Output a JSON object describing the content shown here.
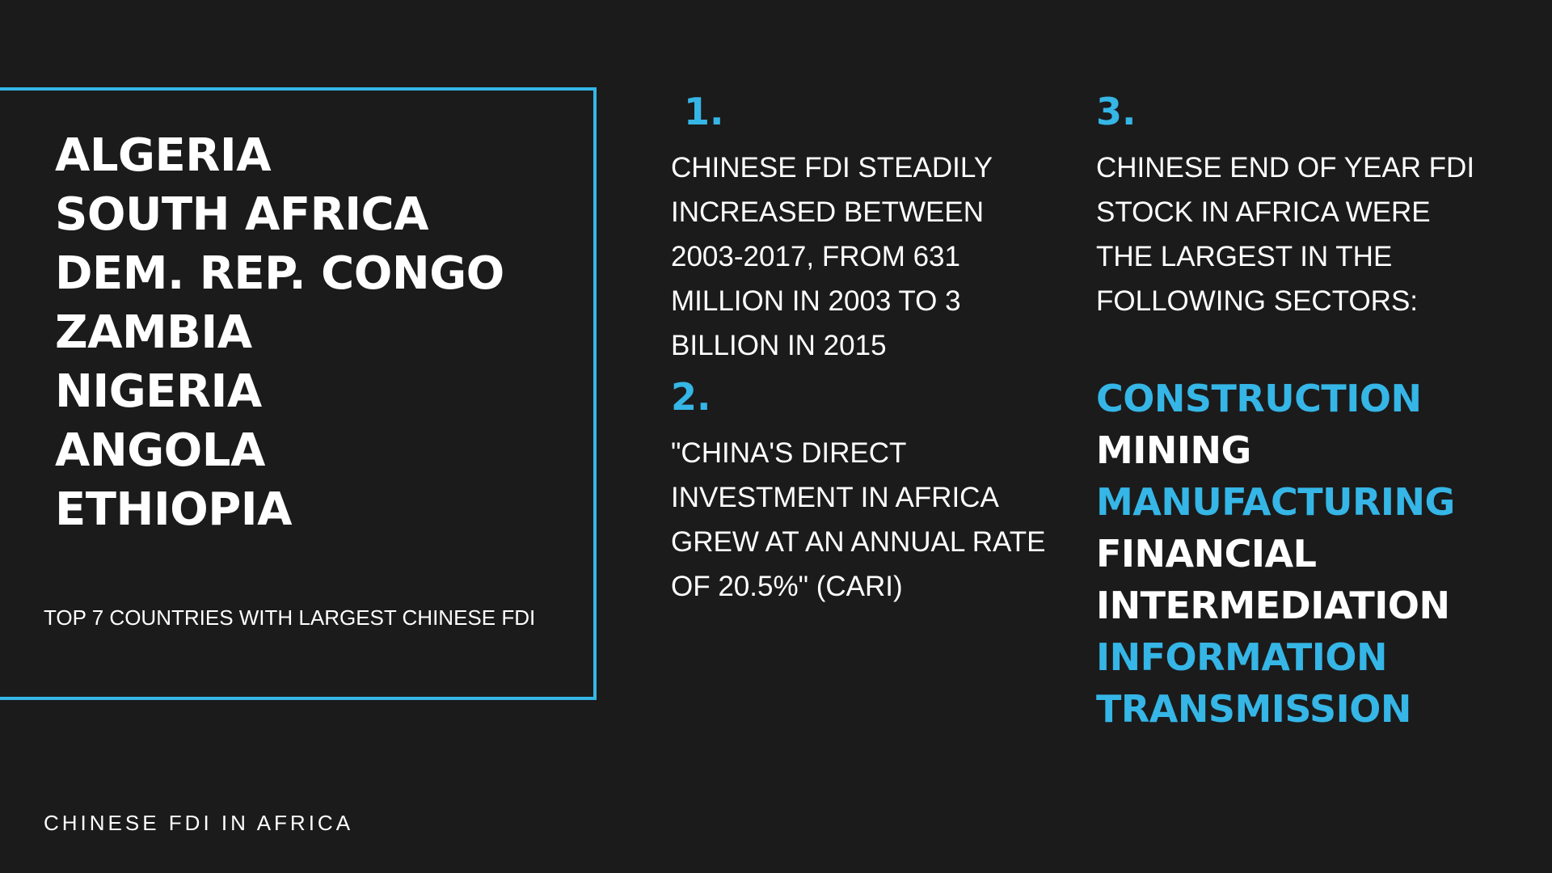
{
  "left_panel": {
    "countries": [
      "ALGERIA",
      "SOUTH AFRICA",
      "DEM. REP. CONGO",
      "ZAMBIA",
      "NIGERIA",
      "ANGOLA",
      "ETHIOPIA"
    ],
    "caption": "TOP 7 COUNTRIES WITH LARGEST CHINESE FDI",
    "border_color": "#35b6e6"
  },
  "footer": {
    "title": "CHINESE FDI IN AFRICA"
  },
  "points": [
    {
      "number": "1.",
      "lines": [
        "CHINESE FDI STEADILY",
        "INCREASED BETWEEN",
        "2003-2017, FROM 631",
        "MILLION IN 2003 TO 3",
        "BILLION IN 2015"
      ]
    },
    {
      "number": "2.",
      "lines": [
        "\"CHINA'S DIRECT",
        "INVESTMENT IN AFRICA",
        "GREW AT AN ANNUAL RATE",
        "OF 20.5%\" (CARI)"
      ]
    },
    {
      "number": "3.",
      "lines": [
        "CHINESE END OF YEAR FDI",
        "STOCK IN AFRICA WERE",
        "THE LARGEST IN THE",
        "FOLLOWING SECTORS:"
      ]
    }
  ],
  "sectors": [
    {
      "text": "CONSTRUCTION",
      "color": "#35b6e6"
    },
    {
      "text": "MINING",
      "color": "#ffffff"
    },
    {
      "text": "MANUFACTURING",
      "color": "#35b6e6"
    },
    {
      "text": "FINANCIAL",
      "color": "#ffffff"
    },
    {
      "text": "INTERMEDIATION",
      "color": "#ffffff"
    },
    {
      "text": "INFORMATION",
      "color": "#35b6e6"
    },
    {
      "text": "TRANSMISSION",
      "color": "#35b6e6"
    }
  ],
  "colors": {
    "background": "#1b1b1c",
    "accent": "#35b6e6",
    "text": "#ffffff"
  }
}
